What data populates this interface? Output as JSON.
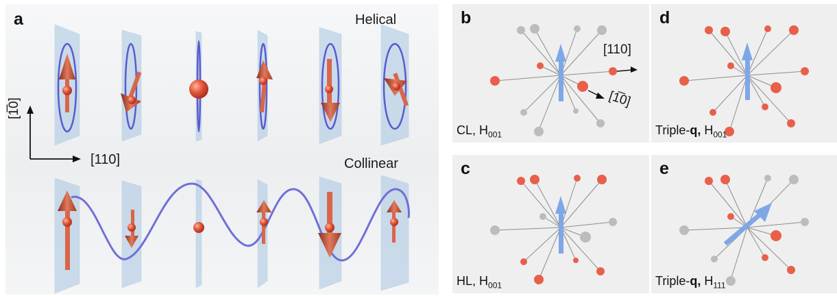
{
  "panel_a": {
    "letter": "a",
    "helical_label": "Helical",
    "collinear_label": "Collinear",
    "axis_vertical": "[1̅0]",
    "axis_horizontal": "[110]",
    "colors": {
      "spin": "#d9664a",
      "plane": "#a8c4e0",
      "wave": "#6f6fd8"
    }
  },
  "panel_b": {
    "letter": "b",
    "caption_main": "CL, H",
    "caption_sub": "001",
    "dir_label_1": "[110]",
    "dir_label_2": "[1̅0]"
  },
  "panel_c": {
    "letter": "c",
    "caption_main": "HL, H",
    "caption_sub": "001"
  },
  "panel_d": {
    "letter": "d",
    "caption_main": "Triple-",
    "caption_bold": "q,",
    "caption_h": " H",
    "caption_sub": "001"
  },
  "panel_e": {
    "letter": "e",
    "caption_main": "Triple-",
    "caption_bold": "q,",
    "caption_h": " H",
    "caption_sub": "111"
  }
}
